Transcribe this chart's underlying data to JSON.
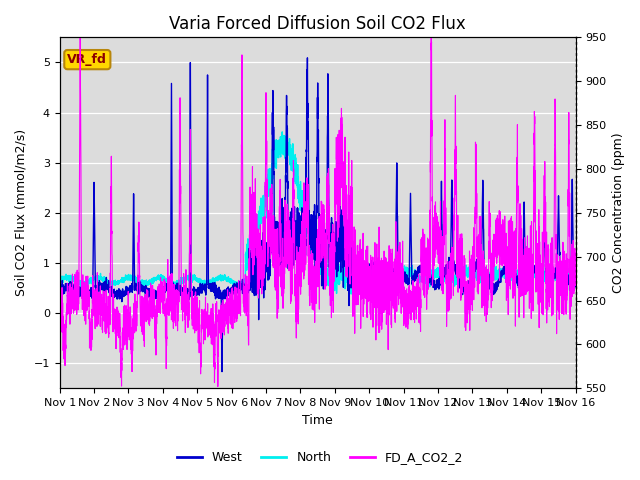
{
  "title": "Varia Forced Diffusion Soil CO2 Flux",
  "ylabel_left": "Soil CO2 Flux (mmol/m2/s)",
  "ylabel_right": "CO2 Concentration (ppm)",
  "xlabel": "Time",
  "ylim_left": [
    -1.5,
    5.5
  ],
  "ylim_right": [
    550,
    950
  ],
  "xlim": [
    0,
    15
  ],
  "xtick_labels": [
    "Nov 1",
    "Nov 2",
    "Nov 3",
    "Nov 4",
    "Nov 5",
    "Nov 6",
    "Nov 7",
    "Nov 8",
    "Nov 9",
    "Nov 10",
    "Nov 11",
    "Nov 12",
    "Nov 13",
    "Nov 14",
    "Nov 15",
    "Nov 16"
  ],
  "xtick_positions": [
    0,
    1,
    2,
    3,
    4,
    5,
    6,
    7,
    8,
    9,
    10,
    11,
    12,
    13,
    14,
    15
  ],
  "color_west": "#0000CD",
  "color_north": "#00EFEF",
  "color_co2": "#FF00FF",
  "label_box_text": "VR_fd",
  "label_box_facecolor": "#FFD700",
  "label_box_edgecolor": "#B8860B",
  "label_box_textcolor": "#8B0000",
  "background_color": "#DCDCDC",
  "linewidth_flux": 1.0,
  "linewidth_co2": 0.8,
  "title_fontsize": 12,
  "axis_fontsize": 9,
  "tick_fontsize": 8,
  "legend_fontsize": 9
}
